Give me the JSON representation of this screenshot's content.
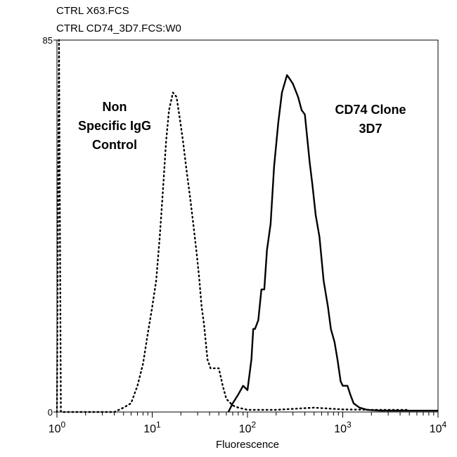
{
  "files": [
    "CTRL X63.FCS",
    "CTRL CD74_3D7.FCS:W0"
  ],
  "chart_data": {
    "type": "line",
    "title": "",
    "xlabel": "Fluorescence",
    "ylabel": "",
    "x_scale": "log",
    "xlim": [
      1,
      10000
    ],
    "ylim": [
      0,
      85
    ],
    "x_ticks": [
      {
        "base": "10",
        "exp": "0"
      },
      {
        "base": "10",
        "exp": "1"
      },
      {
        "base": "10",
        "exp": "2"
      },
      {
        "base": "10",
        "exp": "3"
      },
      {
        "base": "10",
        "exp": "4"
      }
    ],
    "y_tick_labels": [
      "85",
      "0"
    ],
    "annotations": [
      {
        "lines": [
          "Non",
          "Specific IgG",
          "Control"
        ]
      },
      {
        "lines": [
          "CD74 Clone",
          "3D7"
        ]
      }
    ],
    "series": [
      {
        "style": "dotted",
        "points": [
          [
            1.0,
            0
          ],
          [
            1.05,
            85
          ],
          [
            1.1,
            0
          ],
          [
            4.0,
            0
          ],
          [
            5.0,
            1
          ],
          [
            6.0,
            2
          ],
          [
            7.0,
            6
          ],
          [
            8.0,
            11
          ],
          [
            9.0,
            18
          ],
          [
            10.0,
            24
          ],
          [
            11.0,
            30
          ],
          [
            12.0,
            40
          ],
          [
            13.0,
            51
          ],
          [
            14.0,
            62
          ],
          [
            15.0,
            69
          ],
          [
            16.5,
            73
          ],
          [
            18.0,
            72
          ],
          [
            19.5,
            67
          ],
          [
            21.0,
            62
          ],
          [
            23.0,
            55
          ],
          [
            25.0,
            49
          ],
          [
            27.0,
            43
          ],
          [
            29.0,
            37
          ],
          [
            31.0,
            31
          ],
          [
            33.0,
            24
          ],
          [
            35.0,
            20
          ],
          [
            38.0,
            12
          ],
          [
            41.0,
            10
          ],
          [
            44.0,
            10
          ],
          [
            47.0,
            10
          ],
          [
            50.0,
            10
          ],
          [
            55.0,
            6
          ],
          [
            60.0,
            3
          ],
          [
            70.0,
            1.5
          ],
          [
            80.0,
            1
          ],
          [
            100.0,
            0.5
          ],
          [
            200.0,
            0.5
          ],
          [
            500.0,
            1
          ],
          [
            1000.0,
            0.6
          ],
          [
            2000.0,
            0.5
          ],
          [
            5000.0,
            0.5
          ]
        ]
      },
      {
        "style": "solid",
        "points": [
          [
            63,
            0
          ],
          [
            70,
            2
          ],
          [
            80,
            4
          ],
          [
            90,
            6
          ],
          [
            100,
            5
          ],
          [
            110,
            12
          ],
          [
            115,
            19
          ],
          [
            120,
            19
          ],
          [
            130,
            21
          ],
          [
            140,
            28
          ],
          [
            150,
            28
          ],
          [
            160,
            37
          ],
          [
            175,
            43
          ],
          [
            190,
            56
          ],
          [
            210,
            66
          ],
          [
            230,
            73
          ],
          [
            260,
            77
          ],
          [
            280,
            76
          ],
          [
            300,
            75
          ],
          [
            340,
            72
          ],
          [
            370,
            69
          ],
          [
            400,
            68
          ],
          [
            450,
            57
          ],
          [
            480,
            52
          ],
          [
            520,
            45
          ],
          [
            570,
            40
          ],
          [
            630,
            30
          ],
          [
            700,
            24
          ],
          [
            750,
            19
          ],
          [
            820,
            16
          ],
          [
            880,
            12
          ],
          [
            950,
            7
          ],
          [
            1000,
            6
          ],
          [
            1050,
            6
          ],
          [
            1120,
            6
          ],
          [
            1200,
            4
          ],
          [
            1300,
            2
          ],
          [
            1500,
            1
          ],
          [
            1800,
            0.5
          ],
          [
            2500,
            0.3
          ],
          [
            4000,
            0.3
          ],
          [
            10000,
            0.3
          ]
        ]
      }
    ]
  }
}
